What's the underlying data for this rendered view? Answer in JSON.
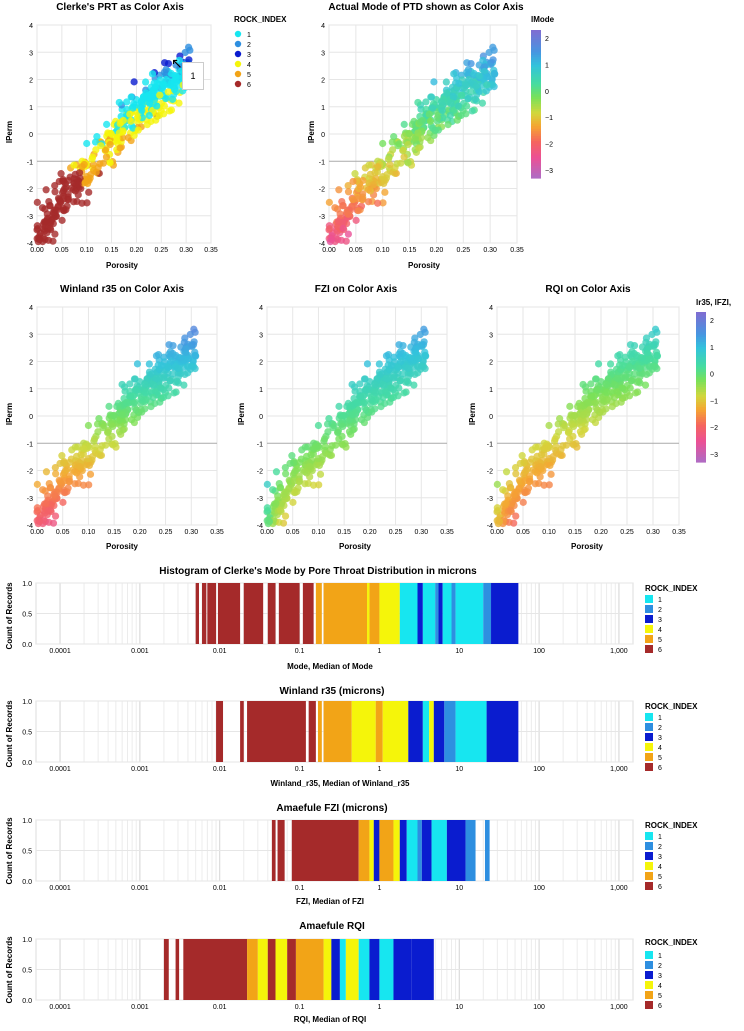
{
  "legend": {
    "rock_title": "ROCK_INDEX",
    "rock_labels": [
      "1",
      "2",
      "3",
      "4",
      "5",
      "6"
    ],
    "rock_colors": [
      "#17e6f0",
      "#2e8fe0",
      "#0a1ccf",
      "#f5f50a",
      "#f2a417",
      "#a52a2a"
    ],
    "lmode_title": "lMode",
    "lmode_ticks": [
      "2",
      "1",
      "0",
      "−1",
      "−2",
      "−3"
    ],
    "multi_title": "lr35, lFZI,",
    "multi_ticks": [
      "2",
      "1",
      "0",
      "−1",
      "−2",
      "−3"
    ]
  },
  "tooltip": {
    "value": "1"
  },
  "chart_data": [
    {
      "id": "s1",
      "type": "scatter",
      "title": "Clerke's PRT as Color Axis",
      "xlabel": "Porosity",
      "ylabel": "lPerm",
      "xlim": [
        0,
        0.35
      ],
      "ylim": [
        -4,
        4
      ],
      "xticks": [
        "0.00",
        "0.05",
        "0.10",
        "0.15",
        "0.20",
        "0.25",
        "0.30",
        "0.35"
      ],
      "yticks": [
        "-4",
        "-3",
        "-2",
        "-1",
        "0",
        "1",
        "2",
        "3",
        "4"
      ],
      "color": "ROCK_INDEX"
    },
    {
      "id": "s2",
      "type": "scatter",
      "title": "Actual Mode of PTD shown as Color Axis",
      "xlabel": "Porosity",
      "ylabel": "lPerm",
      "xlim": [
        0,
        0.35
      ],
      "ylim": [
        -4,
        4
      ],
      "xticks": [
        "0.00",
        "0.05",
        "0.10",
        "0.15",
        "0.20",
        "0.25",
        "0.30",
        "0.35"
      ],
      "yticks": [
        "-4",
        "-3",
        "-2",
        "-1",
        "0",
        "1",
        "2",
        "3",
        "4"
      ],
      "color": "lMode"
    },
    {
      "id": "s3",
      "type": "scatter",
      "title": "Winland r35 on Color Axis",
      "xlabel": "Porosity",
      "ylabel": "lPerm",
      "xlim": [
        0,
        0.35
      ],
      "ylim": [
        -4,
        4
      ],
      "xticks": [
        "0.00",
        "0.05",
        "0.10",
        "0.15",
        "0.20",
        "0.25",
        "0.30",
        "0.35"
      ],
      "yticks": [
        "-4",
        "-3",
        "-2",
        "-1",
        "0",
        "1",
        "2",
        "3",
        "4"
      ],
      "color": "lr35"
    },
    {
      "id": "s4",
      "type": "scatter",
      "title": "FZI on Color Axis",
      "xlabel": "Porosity",
      "ylabel": "lPerm",
      "xlim": [
        0,
        0.35
      ],
      "ylim": [
        -4,
        4
      ],
      "xticks": [
        "0.00",
        "0.05",
        "0.10",
        "0.15",
        "0.20",
        "0.25",
        "0.30",
        "0.35"
      ],
      "yticks": [
        "-4",
        "-3",
        "-2",
        "-1",
        "0",
        "1",
        "2",
        "3",
        "4"
      ],
      "color": "lFZI"
    },
    {
      "id": "s5",
      "type": "scatter",
      "title": "RQI on Color Axis",
      "xlabel": "Porosity",
      "ylabel": "lPerm",
      "xlim": [
        0,
        0.35
      ],
      "ylim": [
        -4,
        4
      ],
      "xticks": [
        "0.00",
        "0.05",
        "0.10",
        "0.15",
        "0.20",
        "0.25",
        "0.30",
        "0.35"
      ],
      "yticks": [
        "-4",
        "-3",
        "-2",
        "-1",
        "0",
        "1",
        "2",
        "3",
        "4"
      ],
      "color": "lRQI"
    },
    {
      "id": "h1",
      "type": "bar",
      "title": "Histogram of Clerke's Mode by Pore Throat Distribution in microns",
      "xlabel": "Mode, Median of Mode",
      "ylabel": "Count of Records",
      "xscale": "log",
      "xlim": [
        5e-05,
        1500
      ],
      "ylim": [
        0,
        1
      ],
      "xticks": [
        "0.0001",
        "0.001",
        "0.01",
        "0.1",
        "1",
        "10",
        "100",
        "1,000"
      ],
      "yticks": [
        "0.0",
        "0.5",
        "1.0"
      ],
      "bands": [
        {
          "from": 0.005,
          "to": 0.0055,
          "rock": 6
        },
        {
          "from": 0.006,
          "to": 0.0068,
          "rock": 6
        },
        {
          "from": 0.007,
          "to": 0.009,
          "rock": 6
        },
        {
          "from": 0.0095,
          "to": 0.018,
          "rock": 6
        },
        {
          "from": 0.02,
          "to": 0.035,
          "rock": 6
        },
        {
          "from": 0.04,
          "to": 0.05,
          "rock": 6
        },
        {
          "from": 0.055,
          "to": 0.1,
          "rock": 6
        },
        {
          "from": 0.11,
          "to": 0.15,
          "rock": 6
        },
        {
          "from": 0.16,
          "to": 0.19,
          "rock": 5
        },
        {
          "from": 0.2,
          "to": 0.7,
          "rock": 5
        },
        {
          "from": 0.75,
          "to": 1.0,
          "rock": 5
        },
        {
          "from": 0.7,
          "to": 0.75,
          "rock": 4
        },
        {
          "from": 1.0,
          "to": 1.8,
          "rock": 4
        },
        {
          "from": 1.8,
          "to": 3.0,
          "rock": 1
        },
        {
          "from": 3.0,
          "to": 3.5,
          "rock": 3
        },
        {
          "from": 3.5,
          "to": 5.0,
          "rock": 1
        },
        {
          "from": 5.0,
          "to": 5.5,
          "rock": 2
        },
        {
          "from": 5.5,
          "to": 6.2,
          "rock": 3
        },
        {
          "from": 6.2,
          "to": 8.0,
          "rock": 1
        },
        {
          "from": 8.0,
          "to": 9.0,
          "rock": 2
        },
        {
          "from": 9.0,
          "to": 20,
          "rock": 1
        },
        {
          "from": 20,
          "to": 25,
          "rock": 2
        },
        {
          "from": 25,
          "to": 55,
          "rock": 3
        }
      ]
    },
    {
      "id": "h2",
      "type": "bar",
      "title": "Winland r35 (microns)",
      "xlabel": "Winland_r35, Median of Winland_r35",
      "ylabel": "Count of Records",
      "xscale": "log",
      "xlim": [
        5e-05,
        1500
      ],
      "ylim": [
        0,
        1
      ],
      "xticks": [
        "0.0001",
        "0.001",
        "0.01",
        "0.1",
        "1",
        "10",
        "100",
        "1,000"
      ],
      "yticks": [
        "0.0",
        "0.5",
        "1.0"
      ],
      "bands": [
        {
          "from": 0.009,
          "to": 0.011,
          "rock": 6
        },
        {
          "from": 0.018,
          "to": 0.02,
          "rock": 6
        },
        {
          "from": 0.022,
          "to": 0.12,
          "rock": 6
        },
        {
          "from": 0.13,
          "to": 0.16,
          "rock": 6
        },
        {
          "from": 0.17,
          "to": 0.19,
          "rock": 5
        },
        {
          "from": 0.2,
          "to": 0.45,
          "rock": 5
        },
        {
          "from": 0.45,
          "to": 0.9,
          "rock": 4
        },
        {
          "from": 0.9,
          "to": 1.1,
          "rock": 5
        },
        {
          "from": 1.1,
          "to": 2.3,
          "rock": 4
        },
        {
          "from": 2.3,
          "to": 3.5,
          "rock": 3
        },
        {
          "from": 3.5,
          "to": 4.2,
          "rock": 1
        },
        {
          "from": 4.2,
          "to": 4.8,
          "rock": 4
        },
        {
          "from": 4.8,
          "to": 6.5,
          "rock": 3
        },
        {
          "from": 6.5,
          "to": 9,
          "rock": 2
        },
        {
          "from": 9,
          "to": 22,
          "rock": 1
        },
        {
          "from": 22,
          "to": 55,
          "rock": 3
        }
      ]
    },
    {
      "id": "h3",
      "type": "bar",
      "title": "Amaefule FZI (microns)",
      "xlabel": "FZI, Median of FZI",
      "ylabel": "Count of Records",
      "xscale": "log",
      "xlim": [
        5e-05,
        1500
      ],
      "ylim": [
        0,
        1
      ],
      "xticks": [
        "0.0001",
        "0.001",
        "0.01",
        "0.1",
        "1",
        "10",
        "100",
        "1,000"
      ],
      "yticks": [
        "0.0",
        "0.5",
        "1.0"
      ],
      "bands": [
        {
          "from": 0.045,
          "to": 0.05,
          "rock": 6
        },
        {
          "from": 0.053,
          "to": 0.065,
          "rock": 6
        },
        {
          "from": 0.08,
          "to": 0.55,
          "rock": 6
        },
        {
          "from": 0.55,
          "to": 0.75,
          "rock": 5
        },
        {
          "from": 0.75,
          "to": 0.85,
          "rock": 4
        },
        {
          "from": 0.85,
          "to": 1.0,
          "rock": 3
        },
        {
          "from": 1.0,
          "to": 1.5,
          "rock": 5
        },
        {
          "from": 1.5,
          "to": 1.8,
          "rock": 4
        },
        {
          "from": 1.8,
          "to": 2.2,
          "rock": 3
        },
        {
          "from": 2.2,
          "to": 3.0,
          "rock": 1
        },
        {
          "from": 3.0,
          "to": 3.4,
          "rock": 2
        },
        {
          "from": 3.4,
          "to": 4.5,
          "rock": 3
        },
        {
          "from": 4.5,
          "to": 7,
          "rock": 1
        },
        {
          "from": 7,
          "to": 12,
          "rock": 3
        },
        {
          "from": 12,
          "to": 16,
          "rock": 2
        },
        {
          "from": 21,
          "to": 24,
          "rock": 2
        }
      ]
    },
    {
      "id": "h4",
      "type": "bar",
      "title": "Amaefule RQI",
      "xlabel": "RQI, Median of RQI",
      "ylabel": "Count of Records",
      "xscale": "log",
      "xlim": [
        5e-05,
        1500
      ],
      "ylim": [
        0,
        1
      ],
      "xticks": [
        "0.0001",
        "0.001",
        "0.01",
        "0.1",
        "1",
        "10",
        "100",
        "1,000"
      ],
      "yticks": [
        "0.0",
        "0.5",
        "1.0"
      ],
      "bands": [
        {
          "from": 0.002,
          "to": 0.0023,
          "rock": 6
        },
        {
          "from": 0.0028,
          "to": 0.0031,
          "rock": 6
        },
        {
          "from": 0.0035,
          "to": 0.022,
          "rock": 6
        },
        {
          "from": 0.022,
          "to": 0.03,
          "rock": 5
        },
        {
          "from": 0.03,
          "to": 0.04,
          "rock": 4
        },
        {
          "from": 0.04,
          "to": 0.05,
          "rock": 6
        },
        {
          "from": 0.05,
          "to": 0.07,
          "rock": 4
        },
        {
          "from": 0.07,
          "to": 0.09,
          "rock": 6
        },
        {
          "from": 0.09,
          "to": 0.2,
          "rock": 5
        },
        {
          "from": 0.2,
          "to": 0.25,
          "rock": 4
        },
        {
          "from": 0.25,
          "to": 0.32,
          "rock": 3
        },
        {
          "from": 0.32,
          "to": 0.38,
          "rock": 1
        },
        {
          "from": 0.38,
          "to": 0.55,
          "rock": 4
        },
        {
          "from": 0.55,
          "to": 0.75,
          "rock": 1
        },
        {
          "from": 0.75,
          "to": 1.0,
          "rock": 3
        },
        {
          "from": 1.0,
          "to": 1.5,
          "rock": 1
        },
        {
          "from": 1.5,
          "to": 2.5,
          "rock": 3
        },
        {
          "from": 2.5,
          "to": 4.8,
          "rock": 3
        }
      ]
    }
  ]
}
